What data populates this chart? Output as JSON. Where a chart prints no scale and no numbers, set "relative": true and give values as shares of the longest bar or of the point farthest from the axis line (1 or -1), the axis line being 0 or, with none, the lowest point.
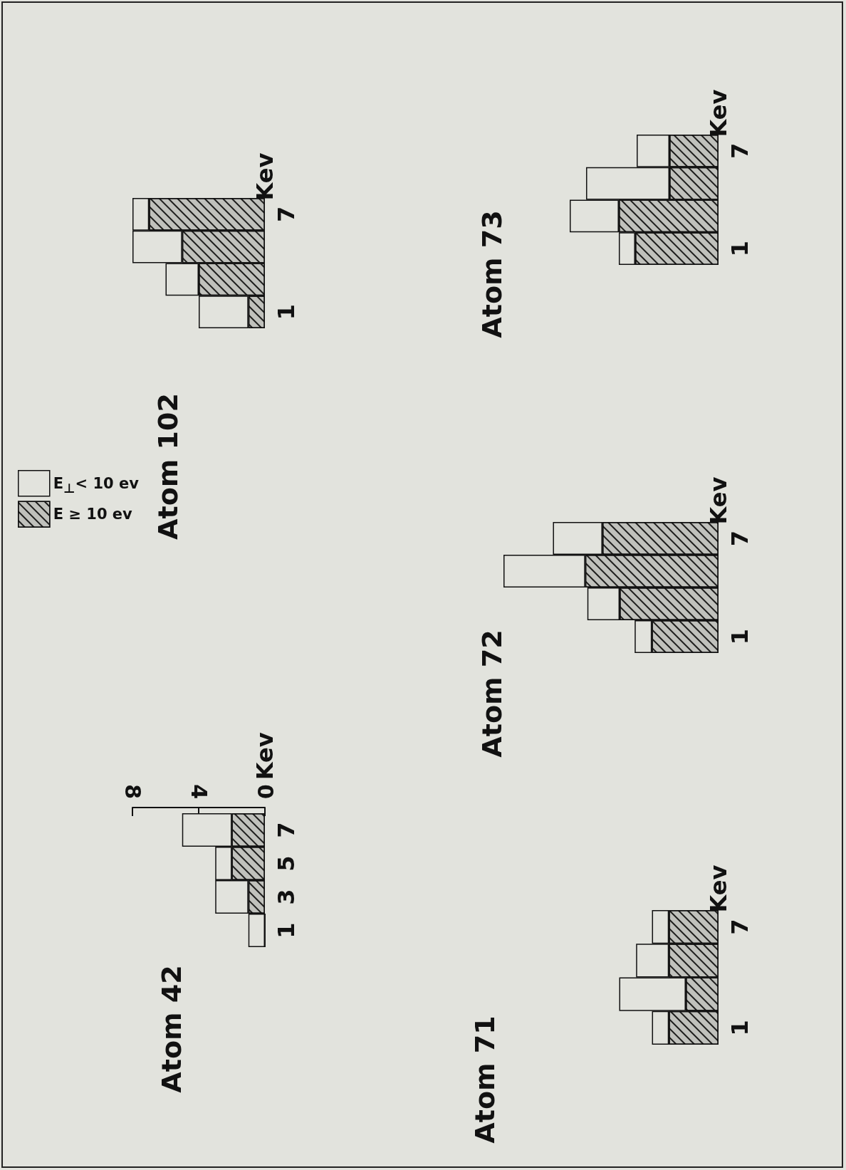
{
  "chart_data": [
    {
      "type": "bar",
      "orientation": "horizontal",
      "title": "Atom 42",
      "ylabel": "Kev",
      "categories": [
        "7",
        "5",
        "3",
        "1"
      ],
      "stacked": true,
      "xlim": [
        8,
        0
      ],
      "xticks": [
        8,
        4,
        0
      ],
      "series": [
        {
          "color": "#c0c1bc",
          "values": [
            2,
            2,
            1,
            0
          ]
        },
        {
          "color": "#e2e3dd",
          "values": [
            3,
            1,
            2,
            1
          ]
        }
      ]
    },
    {
      "type": "bar",
      "orientation": "horizontal",
      "title": "Atom 71",
      "ylabel": "Kev",
      "categories": [
        "7",
        null,
        null,
        "1"
      ],
      "stacked": true,
      "relative": true,
      "tick_labels": "y",
      "series": [
        {
          "color": "#c0c1bc",
          "values": [
            0.5,
            0.5,
            0.33,
            0.5
          ]
        },
        {
          "color": "#e2e3dd",
          "values": [
            0.17,
            0.33,
            0.67,
            0.17
          ]
        }
      ]
    },
    {
      "type": "bar",
      "orientation": "horizontal",
      "title": "Atom 72",
      "ylabel": "Kev",
      "categories": [
        "7",
        null,
        null,
        "1"
      ],
      "stacked": true,
      "relative": true,
      "tick_labels": "y",
      "series": [
        {
          "color": "#c0c1bc",
          "values": [
            0.54,
            0.62,
            0.46,
            0.31
          ]
        },
        {
          "color": "#e2e3dd",
          "values": [
            0.23,
            0.38,
            0.15,
            0.08
          ]
        }
      ]
    },
    {
      "type": "bar",
      "orientation": "horizontal",
      "title": "Atom 102",
      "ylabel": "Kev",
      "categories": [
        "7",
        null,
        null,
        "1"
      ],
      "stacked": true,
      "relative": true,
      "tick_labels": "y",
      "legend": "bottom left",
      "series": [
        {
          "name": "E ≥ 10 ev",
          "color": "#c0c1bc",
          "values": [
            0.875,
            0.625,
            0.5,
            0.125
          ]
        },
        {
          "name": "E$_{⊥}$< 10 ev",
          "color": "#e2e3dd",
          "values": [
            0.125,
            0.375,
            0.25,
            0.375
          ]
        }
      ]
    },
    {
      "type": "bar",
      "orientation": "horizontal",
      "title": "Atom 73",
      "ylabel": "Kev",
      "categories": [
        "7",
        null,
        null,
        "1"
      ],
      "stacked": true,
      "relative": true,
      "tick_labels": "y",
      "series": [
        {
          "color": "#c0c1bc",
          "values": [
            0.33,
            0.33,
            0.67,
            0.56
          ]
        },
        {
          "color": "#e2e3dd",
          "values": [
            0.22,
            0.56,
            0.33,
            0.11
          ]
        }
      ]
    }
  ]
}
